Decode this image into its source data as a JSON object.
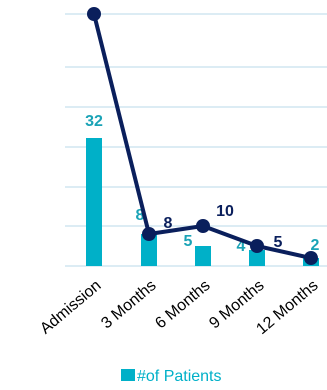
{
  "chart_data": {
    "type": "bar",
    "categories": [
      "Admission",
      "3 Months",
      "6 Months",
      "9 Months",
      "12 Months"
    ],
    "series": [
      {
        "name": "#of Patients",
        "type": "bar",
        "values": [
          32,
          8,
          5,
          4,
          2
        ],
        "color": "#00b0c8",
        "labels": [
          "32",
          "8",
          "5",
          "4",
          "2"
        ]
      },
      {
        "type": "line",
        "values": [
          63,
          8,
          10,
          5,
          2
        ],
        "color": "#0a1f5c",
        "labels": [
          "",
          "8",
          "10",
          "5",
          ""
        ]
      }
    ],
    "ylim": [
      0,
      63
    ],
    "grid": true,
    "grid_color": "#dcecf4",
    "legend_position": "bottom"
  }
}
